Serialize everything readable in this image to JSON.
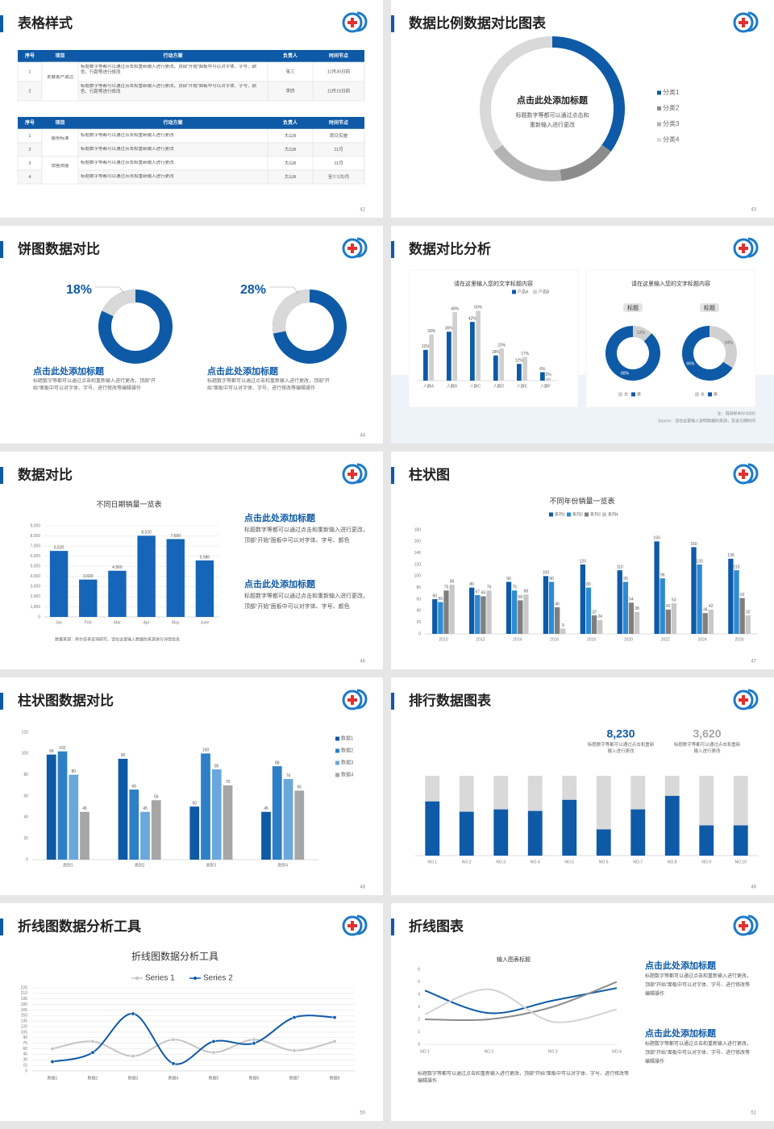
{
  "slides": [
    {
      "title": "表格样式",
      "page": "42",
      "tables": [
        {
          "header": [
            "序号",
            "项目",
            "行动方案",
            "负责人",
            "时间节点"
          ],
          "groups": [
            {
              "item": "发展客户激活",
              "rows": [
                {
                  "no": "1",
                  "plan": "标题数字等都可以通过点击和重新输入进行更改，顶部“开始”面板中可以对字体、字号、颜色、行距等进行修改",
                  "owner": "张三",
                  "time": "11月30日前"
                },
                {
                  "no": "2",
                  "plan": "标题数字等都可以通过点击和重新输入进行更改，顶部“开始”面板中可以对字体、字号、颜色、行距等进行修改",
                  "owner": "李四",
                  "time": "11月15日前"
                }
              ]
            }
          ]
        },
        {
          "header": [
            "序号",
            "项目",
            "行动方案",
            "负责人",
            "时间节点"
          ],
          "groups": [
            {
              "item": "服务标准",
              "rows": [
                {
                  "no": "1",
                  "plan": "标题数字等都可以通过点击和重新输入进行更改",
                  "owner": "大山B",
                  "time": "即日实施"
                },
                {
                  "no": "2",
                  "plan": "标题数字等都可以通过点击和重新输入进行更改",
                  "owner": "大山B",
                  "time": "11月"
                }
              ]
            },
            {
              "item": "销售技能",
              "rows": [
                {
                  "no": "3",
                  "plan": "标题数字等都可以通过点击和重新输入进行更改",
                  "owner": "大山B",
                  "time": "11月"
                },
                {
                  "no": "4",
                  "plan": "标题数字等都可以通过点击和重新输入进行更改",
                  "owner": "大山B",
                  "time": "至少1次/月"
                }
              ]
            }
          ]
        }
      ]
    },
    {
      "title": "数据比例数据对比图表",
      "page": "43",
      "chart": {
        "type": "donut",
        "categories": [
          "分类1",
          "分类2",
          "分类3",
          "分类4"
        ],
        "values": [
          35,
          13,
          17,
          35
        ],
        "colors": [
          "#0e5aa7",
          "#8c8c8c",
          "#b3b3b3",
          "#d9d9d9"
        ],
        "center_title": "点击此处添加标题",
        "center_text": [
          "标题数字等都可以通过点击和",
          "重新输入进行更改"
        ]
      }
    },
    {
      "title": "饼图数据对比",
      "page": "44",
      "charts": [
        {
          "type": "ring",
          "value": 18,
          "label": "18%",
          "colors": [
            "#d9d9d9",
            "#0e5aa7"
          ],
          "heading": "点击此处添加标题",
          "text": "标题数字等都可以通过点击和重新输入进行更改，顶部“开始”面板中可以对字体、字号、进行修改等编辑操作"
        },
        {
          "type": "ring",
          "value": 28,
          "label": "28%",
          "colors": [
            "#d9d9d9",
            "#0e5aa7"
          ],
          "heading": "点击此处添加标题",
          "text": "标题数字等都可以通过点击和重新输入进行更改，顶部“开始”面板中可以对字体、字号、进行修改等编辑操作"
        }
      ]
    },
    {
      "title": "数据对比分析",
      "page": "45",
      "charts": [
        {
          "type": "bar",
          "title": "请在这里输入您的文字标题内容",
          "categories": [
            "人群A",
            "人群B",
            "人群C",
            "人群D",
            "人群E",
            "人群F"
          ],
          "ylim": [
            0,
            60
          ],
          "data_labels": true,
          "series": [
            {
              "name": "产品A",
              "color": "#0e5aa7",
              "values": [
                22,
                35,
                42,
                18,
                12,
                6
              ],
              "value_labels": [
                "22%",
                "35%",
                "42%",
                "18%",
                "12%",
                "6%"
              ]
            },
            {
              "name": "产品B",
              "color": "#d0d0d0",
              "values": [
                33,
                49,
                50,
                23,
                17,
                2
              ],
              "value_labels": [
                "33%",
                "49%",
                "50%",
                "23%",
                "17%",
                "2%"
              ]
            }
          ]
        },
        {
          "type": "rings",
          "title": "请在这里输入您的文字标题内容",
          "categories": [
            "女",
            "男"
          ],
          "colors": [
            "#d0d0d0",
            "#0e5aa7"
          ],
          "rings": [
            {
              "label": "标题",
              "values": [
                12,
                88
              ],
              "value_labels": [
                "12%",
                "88%"
              ]
            },
            {
              "label": "标题",
              "values": [
                34,
                66
              ],
              "value_labels": [
                "34%",
                "66%"
              ]
            }
          ]
        }
      ],
      "notes": [
        "注：调研样本N=5000",
        "Source：请在这里输入说明数据的来源，包含日期时间"
      ]
    },
    {
      "title": "数据对比",
      "page": "46",
      "chart": {
        "type": "bar",
        "title": "不同日期销量一览表",
        "categories": [
          "Jan",
          "Feb",
          "Mar",
          "Apr",
          "May",
          "June"
        ],
        "ylim": [
          0,
          9000
        ],
        "grid": true,
        "data_labels": true,
        "yticks": [
          0,
          {
            "value": 1000,
            "label": "1,000"
          },
          {
            "value": 2000,
            "label": "2,000"
          },
          {
            "value": 3000,
            "label": "3,000"
          },
          {
            "value": 4000,
            "label": "4,000"
          },
          {
            "value": 5000,
            "label": "5,000"
          },
          {
            "value": 6000,
            "label": "6,000"
          },
          {
            "value": 7000,
            "label": "7,000"
          },
          {
            "value": 8000,
            "label": "8,000"
          },
          {
            "value": 9000,
            "label": "9,000"
          }
        ],
        "series": [
          {
            "color": "#1565b8",
            "values": [
              6520,
              3690,
              4560,
              8020,
              7690,
              5580
            ],
            "value_labels": [
              "6,520",
              "3,690",
              "4,560",
              "8,020",
              "7,690",
              "5,580"
            ]
          }
        ],
        "source": "数据来源：库尔奈普咨询研究，请在这里输入数据的来源进行详情信息"
      },
      "blocks": [
        {
          "heading": "点击此处添加标题",
          "text": "标题数字等都可以通过点击和重新输入进行更改，顶部“开始”面板中可以对字体、字号、颜色"
        },
        {
          "heading": "点击此处添加标题",
          "text": "标题数字等都可以通过点击和重新输入进行更改，顶部“开始”面板中可以对字体、字号、颜色"
        }
      ]
    },
    {
      "title": "柱状图",
      "page": "47",
      "chart": {
        "type": "bar",
        "title": "不同年份销量一览表",
        "categories": [
          "2010",
          "2012",
          "2014",
          "2016",
          "2018",
          "2020",
          "2022",
          "2024",
          "2026"
        ],
        "ylim": [
          0,
          180
        ],
        "yticks": [
          0,
          20,
          40,
          60,
          80,
          100,
          120,
          140,
          160,
          180
        ],
        "data_labels": true,
        "series": [
          {
            "name": "系列1",
            "color": "#0e5aa7",
            "values": [
              60,
              80,
              90,
              100,
              120,
              110,
              160,
              150,
              130
            ]
          },
          {
            "name": "系列2",
            "color": "#2e8bd1",
            "values": [
              55,
              67,
              75,
              90,
              80,
              90,
              96,
              120,
              110
            ]
          },
          {
            "name": "系列3",
            "color": "#7f7f7f",
            "values": [
              75,
              65,
              58,
              46,
              32,
              54,
              42,
              36,
              62
            ]
          },
          {
            "name": "系列4",
            "color": "#c8c8c8",
            "values": [
              85,
              75,
              68,
              9,
              24,
              38,
              53,
              42,
              32
            ]
          }
        ]
      }
    },
    {
      "title": "柱状图数据对比",
      "page": "48",
      "chart": {
        "type": "bar",
        "categories": [
          "类别1",
          "类别2",
          "类别3",
          "类别4"
        ],
        "ylim": [
          0,
          120
        ],
        "yticks": [
          0,
          20,
          40,
          60,
          80,
          100,
          120
        ],
        "data_labels": true,
        "series": [
          {
            "name": "数据1",
            "color": "#0e5aa7",
            "values": [
              99,
              95,
              50,
              45
            ]
          },
          {
            "name": "数据2",
            "color": "#2e7fc6",
            "values": [
              102,
              66,
              100,
              88
            ]
          },
          {
            "name": "数据3",
            "color": "#6aa8dc",
            "values": [
              80,
              45,
              85,
              76
            ]
          },
          {
            "name": "数据4",
            "color": "#a6a6a6",
            "values": [
              45,
              56,
              70,
              65
            ]
          }
        ]
      }
    },
    {
      "title": "排行数据图表",
      "page": "49",
      "stats": [
        {
          "value": "8,230",
          "text": "标题数字等都可以通过点击和重新输入进行更改"
        },
        {
          "value": "3,620",
          "text": "标题数字等都可以通过点击和重新输入进行更改"
        }
      ],
      "chart": {
        "type": "bar",
        "stacked": true,
        "categories": [
          "NO.1",
          "NO.2",
          "NO.3",
          "NO.4",
          "NO.5",
          "NO.6",
          "NO.7",
          "NO.8",
          "NO.9",
          "NO.10"
        ],
        "series": [
          {
            "color": "#0e5aa7",
            "values": [
              68,
              55,
              58,
              56,
              70,
              33,
              58,
              75,
              38,
              38
            ]
          },
          {
            "color": "#d9d9d9",
            "values": [
              32,
              45,
              42,
              44,
              30,
              67,
              42,
              25,
              62,
              62
            ]
          }
        ]
      }
    },
    {
      "title": "折线图数据分析工具",
      "page": "50",
      "chart": {
        "type": "line",
        "title": "折线图数据分析工具",
        "smooth": true,
        "markers": true,
        "grid": true,
        "categories": [
          "数据1",
          "数据2",
          "数据3",
          "数据4",
          "数据5",
          "数据6",
          "数据7",
          "数据8"
        ],
        "ylim": [
          0,
          225
        ],
        "yticks": [
          0,
          15,
          30,
          45,
          60,
          75,
          90,
          105,
          120,
          135,
          150,
          165,
          180,
          195,
          210,
          225
        ],
        "series": [
          {
            "name": "Series 1",
            "color": "#c4c4c4",
            "values": [
              60,
              80,
              40,
              85,
              50,
              85,
              55,
              80
            ]
          },
          {
            "name": "Series 2",
            "color": "#0e5aa7",
            "values": [
              25,
              50,
              155,
              20,
              80,
              75,
              145,
              145
            ]
          }
        ]
      }
    },
    {
      "title": "折线图表",
      "page": "51",
      "chart": {
        "type": "line",
        "title": "输入图表标题",
        "smooth": true,
        "edge": true,
        "categories": [
          "NO.1",
          "NO.2",
          "NO.3",
          "NO.4"
        ],
        "ylim": [
          0,
          6
        ],
        "yticks": [
          0,
          1,
          2,
          3,
          4,
          5,
          6
        ],
        "series": [
          {
            "color": "#0e5aa7",
            "values": [
              4.3,
              2.5,
              3.5,
              4.5
            ]
          },
          {
            "color": "#8c8c8c",
            "values": [
              2.0,
              2.0,
              3.0,
              5.0
            ]
          },
          {
            "color": "#d3d3d3",
            "values": [
              2.4,
              4.4,
              1.8,
              2.8
            ]
          }
        ]
      },
      "note": "标题数字等都可以通过点击和重新输入进行更改，顶部“开始”面板中可以对字体、字号、进行修改等编辑操作",
      "blocks": [
        {
          "heading": "点击此处添加标题",
          "text": "标题数字等都可以通过点击和重新输入进行更改，顶部“开始”面板中可以对字体、字号、进行修改等编辑操作"
        },
        {
          "heading": "点击此处添加标题",
          "text": "标题数字等都可以通过点击和重新输入进行更改，顶部“开始”面板中可以对字体、字号、进行修改等编辑操作"
        }
      ]
    }
  ]
}
